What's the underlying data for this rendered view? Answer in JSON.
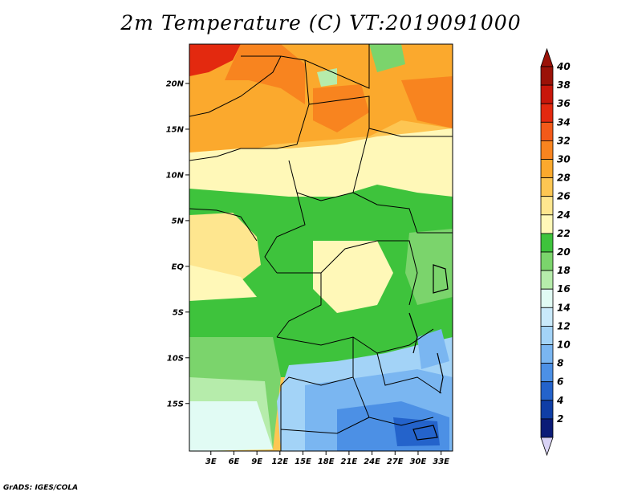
{
  "title": "2m Temperature (C) VT:2019091000",
  "credit": "GrADS: IGES/COLA",
  "map": {
    "lat_labels": [
      {
        "label": "20N",
        "value": 20
      },
      {
        "label": "15N",
        "value": 15
      },
      {
        "label": "10N",
        "value": 10
      },
      {
        "label": "5N",
        "value": 5
      },
      {
        "label": "EQ",
        "value": 0
      },
      {
        "label": "5S",
        "value": -5
      },
      {
        "label": "10S",
        "value": -10
      },
      {
        "label": "15S",
        "value": -15
      }
    ],
    "lon_labels": [
      {
        "label": "3E",
        "value": 3
      },
      {
        "label": "6E",
        "value": 6
      },
      {
        "label": "9E",
        "value": 9
      },
      {
        "label": "12E",
        "value": 12
      },
      {
        "label": "15E",
        "value": 15
      },
      {
        "label": "18E",
        "value": 18
      },
      {
        "label": "21E",
        "value": 21
      },
      {
        "label": "24E",
        "value": 24
      },
      {
        "label": "27E",
        "value": 27
      },
      {
        "label": "30E",
        "value": 30
      },
      {
        "label": "33E",
        "value": 33
      }
    ],
    "lon_range": [
      0.2,
      34.5
    ],
    "lat_range": [
      -20.2,
      24.3
    ]
  },
  "colorbar": {
    "labels": [
      "40",
      "38",
      "36",
      "34",
      "32",
      "30",
      "28",
      "26",
      "24",
      "22",
      "20",
      "18",
      "16",
      "14",
      "12",
      "10",
      "8",
      "6",
      "4",
      "2"
    ],
    "colors": [
      "#9b1208",
      "#c8170b",
      "#e3290f",
      "#f35a19",
      "#f8841f",
      "#fba92d",
      "#fdc653",
      "#fee68f",
      "#fff8b8",
      "#3ec33c",
      "#7bd46c",
      "#b6ecab",
      "#e1fbf4",
      "#c9e9fb",
      "#a3d3f7",
      "#7ab6f1",
      "#4c90e5",
      "#2463cb",
      "#0f3ea6",
      "#0b1b77"
    ],
    "top_color": "#9b1208",
    "bottom_color": "#d9d3f5"
  }
}
